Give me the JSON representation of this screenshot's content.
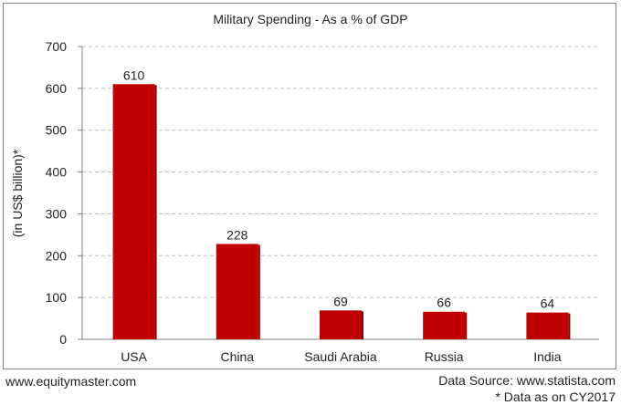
{
  "chart_data": {
    "type": "bar",
    "title": "Military Spending - As a % of GDP",
    "ylabel": "(in US$ billion)*",
    "xlabel": "",
    "categories": [
      "USA",
      "China",
      "Saudi Arabia",
      "Russia",
      "India"
    ],
    "values": [
      610,
      228,
      69,
      66,
      64
    ],
    "data_labels": [
      "610",
      "228",
      "69",
      "66",
      "64"
    ],
    "ylim": [
      0,
      700
    ],
    "yticks": [
      0,
      100,
      200,
      300,
      400,
      500,
      600,
      700
    ],
    "grid": true,
    "legend": "none",
    "bar_color": "#c00000"
  },
  "footer": {
    "website": "www.equitymaster.com",
    "source": "Data Source: www.statista.com",
    "note": "* Data as on CY2017"
  }
}
